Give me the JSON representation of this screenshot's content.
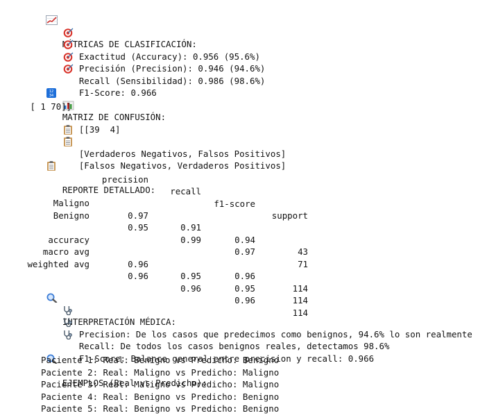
{
  "metrics": {
    "heading": "MÉTRICAS DE CLASIFICACIÓN:",
    "heading_icon": "chart-increasing-icon",
    "items_icon": "direct-hit-target-icon",
    "items": [
      "Exactitud (Accuracy): 0.956 (95.6%)",
      "Precisión (Precision): 0.946 (94.6%)",
      "Recall (Sensibilidad): 0.986 (98.6%)",
      "F1-Score: 0.966"
    ]
  },
  "confusion": {
    "heading": "MATRIZ DE CONFUSIÓN:",
    "heading_icon": "input-numbers-icon",
    "row1": "[[39  4]",
    "row1_icon": "bar-chart-icon",
    "row2": " [ 1 70]]",
    "legend_icon": "clipboard-icon",
    "legend": [
      "[Verdaderos Negativos, Falsos Positivos]",
      "[Falsos Negativos, Verdaderos Positivos]"
    ]
  },
  "report": {
    "heading": "REPORTE DETALLADO:",
    "heading_icon": "clipboard-icon",
    "columns": [
      "precision",
      "recall",
      "f1-score",
      "support"
    ],
    "rows": [
      {
        "label": "Maligno",
        "precision": "0.97",
        "recall": "0.91",
        "f1": "0.94",
        "support": "43"
      },
      {
        "label": "Benigno",
        "precision": "0.95",
        "recall": "0.99",
        "f1": "0.97",
        "support": "71"
      },
      {
        "label": "",
        "precision": "",
        "recall": "",
        "f1": "",
        "support": ""
      },
      {
        "label": "accuracy",
        "precision": "",
        "recall": "",
        "f1": "0.96",
        "support": "114"
      },
      {
        "label": "macro avg",
        "precision": "0.96",
        "recall": "0.95",
        "f1": "0.95",
        "support": "114"
      },
      {
        "label": "weighted avg",
        "precision": "0.96",
        "recall": "0.96",
        "f1": "0.96",
        "support": "114"
      }
    ]
  },
  "interpretation": {
    "heading": "INTERPRETACIÓN MÉDICA:",
    "heading_icon": "magnifying-glass-icon",
    "items_icon": "stethoscope-icon",
    "items": [
      "Precision: De los casos que predecimos como benignos, 94.6% lo son realmente",
      "Recall: De todos los casos benignos reales, detectamos 98.6%",
      "F1-Score: Balance general entre precision y recall: 0.966"
    ]
  },
  "examples": {
    "heading": "EJEMPLOS (Real vs Predicho):",
    "heading_icon": "magnifying-glass-icon",
    "items": [
      "Paciente 1: Real: Benigno vs Predicho: Benigno",
      "Paciente 2: Real: Maligno vs Predicho: Maligno",
      "Paciente 3: Real: Maligno vs Predicho: Maligno",
      "Paciente 4: Real: Benigno vs Predicho: Benigno",
      "Paciente 5: Real: Benigno vs Predicho: Benigno"
    ]
  },
  "colors": {
    "text": "#111111",
    "background": "#ffffff",
    "target_red": "#d9342b",
    "chart_red": "#d0312d",
    "numbers_blue": "#1e6fd9",
    "bar_blue": "#2b73c8",
    "clipboard_tan": "#c99a5b",
    "magnifier_blue": "#3a7bd5"
  }
}
